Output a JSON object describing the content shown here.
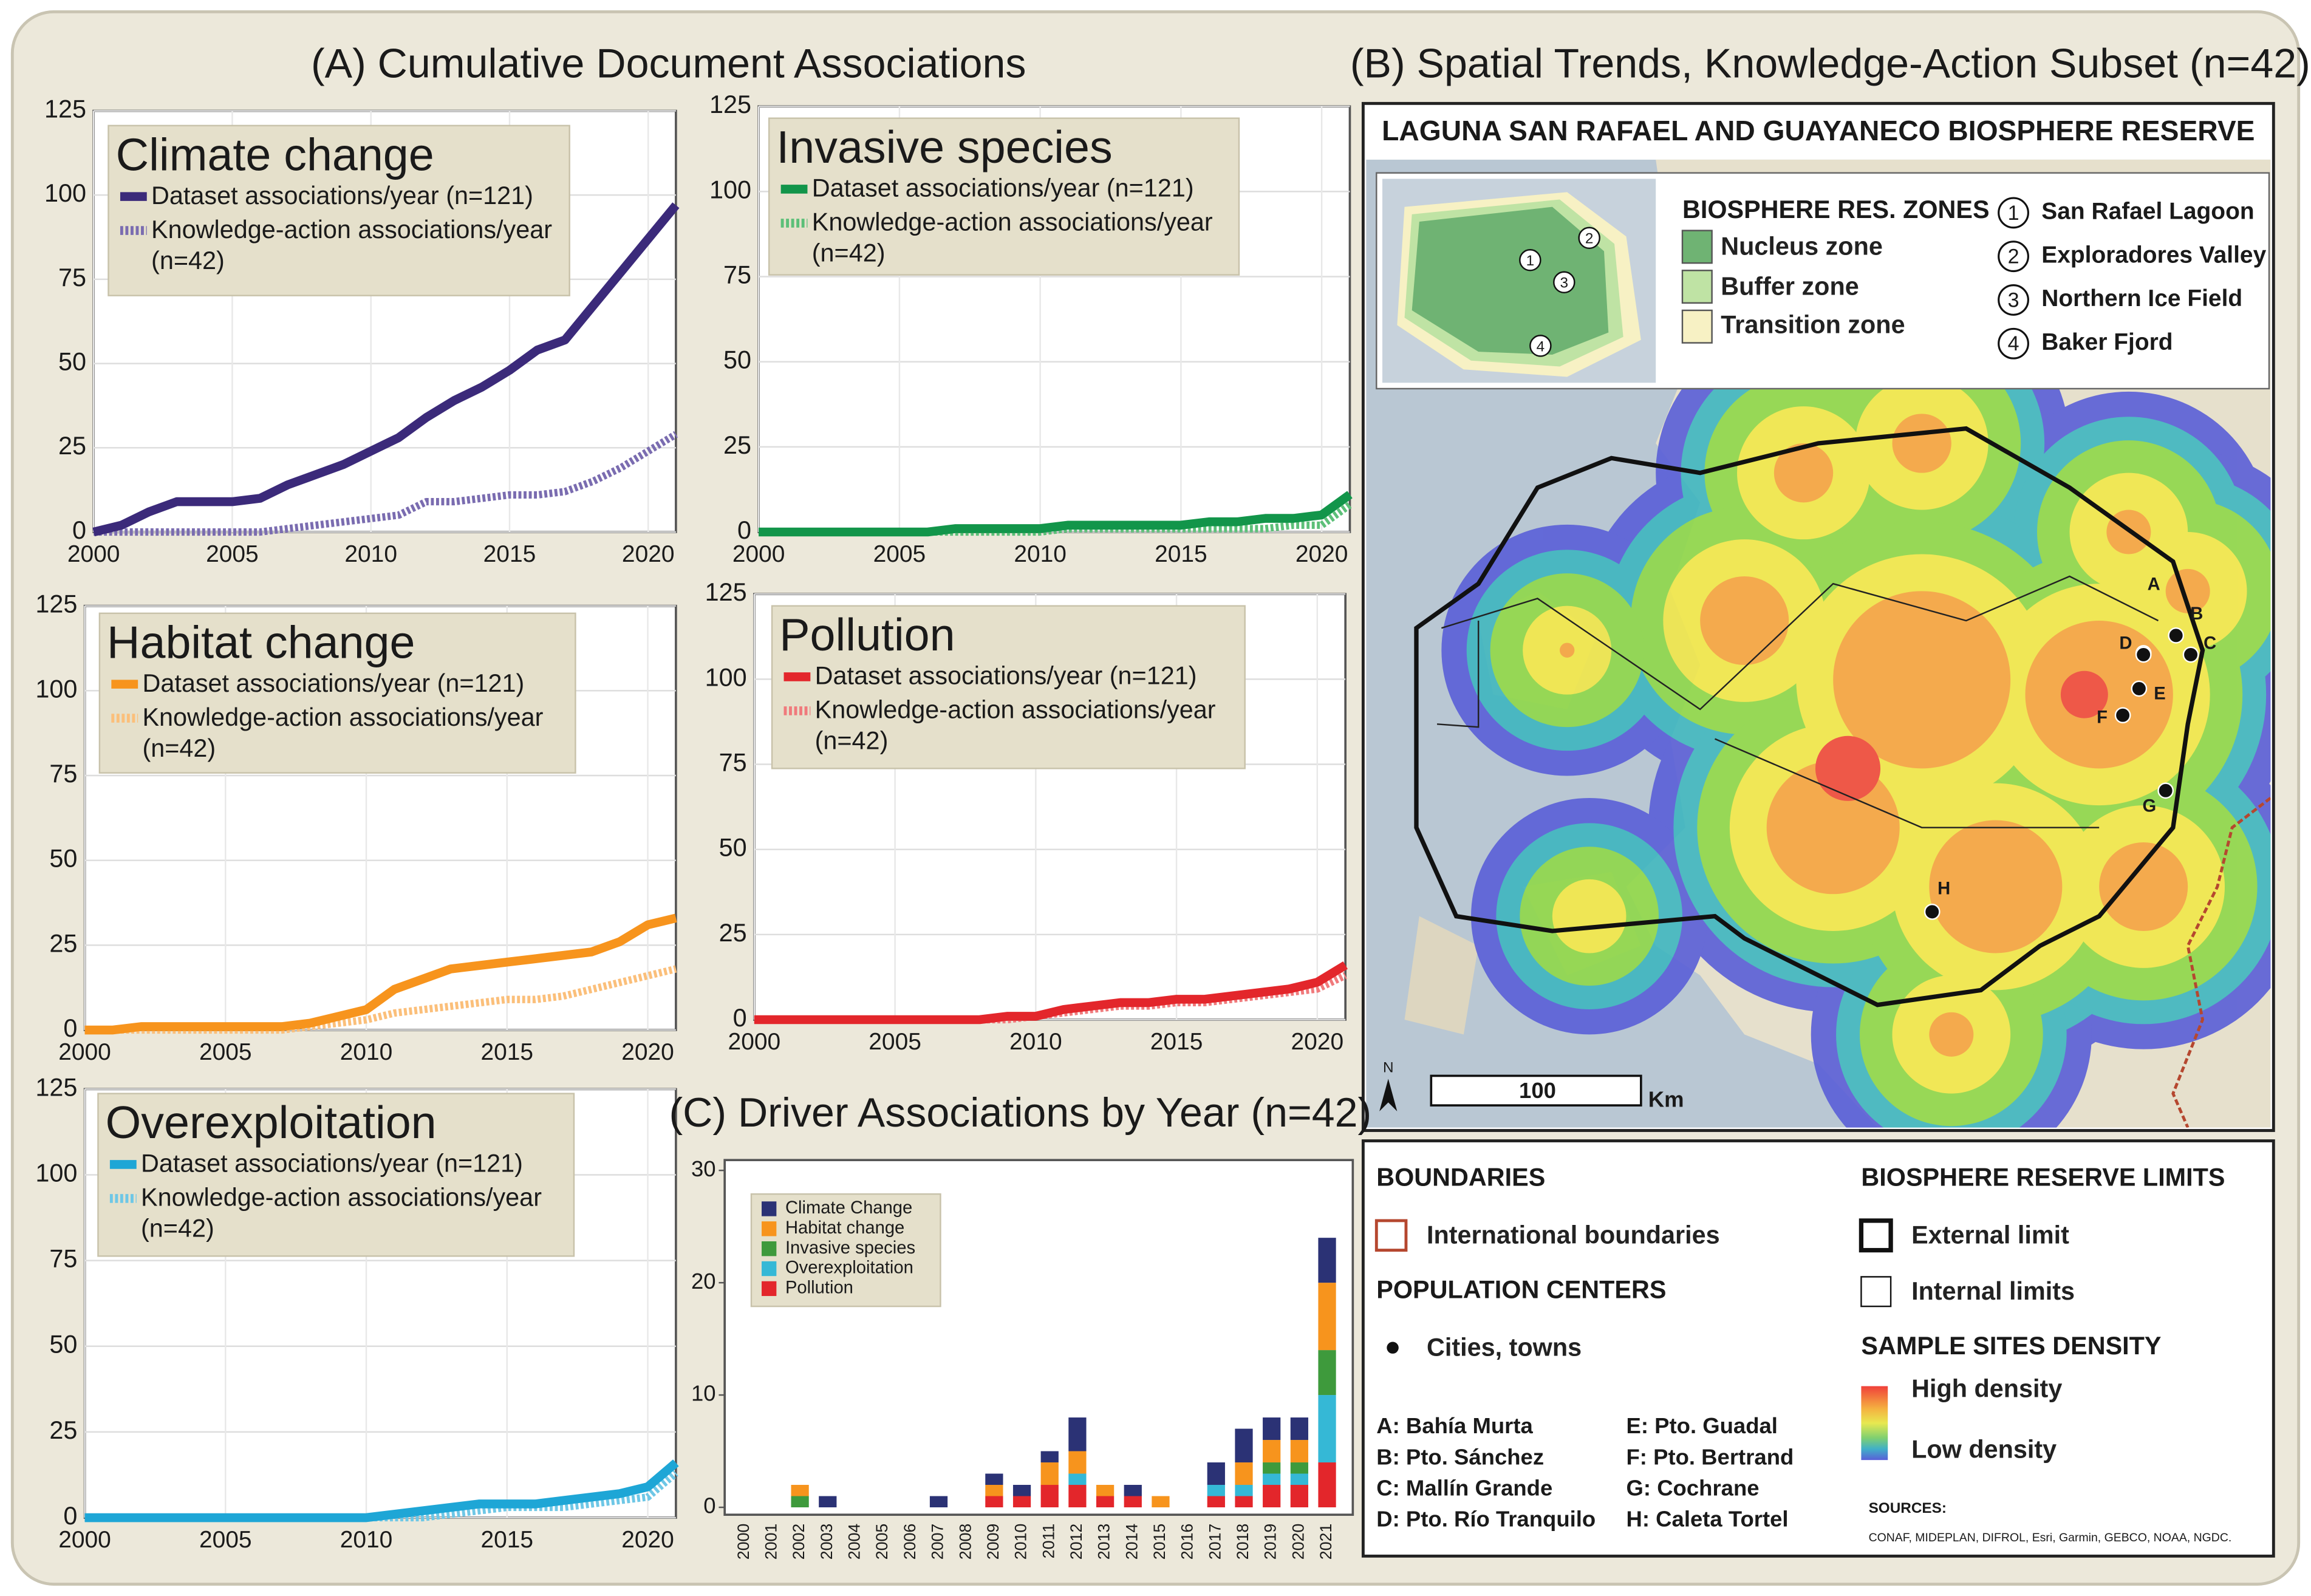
{
  "panel_a_title": "(A) Cumulative Document Associations",
  "chart_data": [
    {
      "type": "line",
      "title": "Climate change",
      "x": [
        2000,
        2001,
        2002,
        2003,
        2004,
        2005,
        2006,
        2007,
        2008,
        2009,
        2010,
        2011,
        2012,
        2013,
        2014,
        2015,
        2016,
        2017,
        2018,
        2019,
        2020,
        2021
      ],
      "xlim": [
        2000,
        2021
      ],
      "xticks": [
        2000,
        2005,
        2010,
        2015,
        2020
      ],
      "ylim": [
        0,
        125
      ],
      "yticks": [
        0,
        25,
        50,
        75,
        100,
        125
      ],
      "grid": true,
      "series": [
        {
          "name": "Dataset associations/year (n=121)",
          "color": "#3b2a7a",
          "line_style": "solid",
          "values": [
            0,
            2,
            6,
            9,
            9,
            9,
            10,
            14,
            17,
            20,
            24,
            28,
            34,
            39,
            43,
            48,
            54,
            57,
            67,
            77,
            87,
            97
          ]
        },
        {
          "name": "Knowledge-action associations/year (n=42)",
          "color": "#7a6cb0",
          "line_style": "dashed",
          "values": [
            0,
            0,
            0,
            0,
            0,
            0,
            0,
            1,
            2,
            3,
            4,
            5,
            9,
            9,
            10,
            11,
            11,
            12,
            15,
            19,
            24,
            29
          ]
        }
      ]
    },
    {
      "type": "line",
      "title": "Invasive species",
      "x": [
        2000,
        2001,
        2002,
        2003,
        2004,
        2005,
        2006,
        2007,
        2008,
        2009,
        2010,
        2011,
        2012,
        2013,
        2014,
        2015,
        2016,
        2017,
        2018,
        2019,
        2020,
        2021
      ],
      "xlim": [
        2000,
        2021
      ],
      "xticks": [
        2000,
        2005,
        2010,
        2015,
        2020
      ],
      "ylim": [
        0,
        125
      ],
      "yticks": [
        0,
        25,
        50,
        75,
        100,
        125
      ],
      "grid": true,
      "series": [
        {
          "name": "Dataset associations/year (n=121)",
          "color": "#12954a",
          "line_style": "solid",
          "values": [
            0,
            0,
            0,
            0,
            0,
            0,
            0,
            1,
            1,
            1,
            1,
            2,
            2,
            2,
            2,
            2,
            3,
            3,
            4,
            4,
            5,
            11
          ]
        },
        {
          "name": "Knowledge-action associations/year (n=42)",
          "color": "#5cbf78",
          "line_style": "dashed",
          "values": [
            0,
            0,
            0,
            0,
            0,
            0,
            0,
            0,
            0,
            0,
            0,
            1,
            1,
            1,
            1,
            1,
            1,
            1,
            1,
            2,
            2,
            8
          ]
        }
      ]
    },
    {
      "type": "line",
      "title": "Habitat change",
      "x": [
        2000,
        2001,
        2002,
        2003,
        2004,
        2005,
        2006,
        2007,
        2008,
        2009,
        2010,
        2011,
        2012,
        2013,
        2014,
        2015,
        2016,
        2017,
        2018,
        2019,
        2020,
        2021
      ],
      "xlim": [
        2000,
        2021
      ],
      "xticks": [
        2000,
        2005,
        2010,
        2015,
        2020
      ],
      "ylim": [
        0,
        125
      ],
      "yticks": [
        0,
        25,
        50,
        75,
        100,
        125
      ],
      "grid": true,
      "series": [
        {
          "name": "Dataset associations/year (n=121)",
          "color": "#f7941d",
          "line_style": "solid",
          "values": [
            0,
            0,
            1,
            1,
            1,
            1,
            1,
            1,
            2,
            4,
            6,
            12,
            15,
            18,
            19,
            20,
            21,
            22,
            23,
            26,
            31,
            33
          ]
        },
        {
          "name": "Knowledge-action associations/year (n=42)",
          "color": "#fbbf7a",
          "line_style": "dashed",
          "values": [
            0,
            0,
            0,
            0,
            0,
            0,
            0,
            0,
            1,
            2,
            3,
            5,
            6,
            7,
            8,
            9,
            9,
            10,
            12,
            14,
            16,
            18
          ]
        }
      ]
    },
    {
      "type": "line",
      "title": "Pollution",
      "x": [
        2000,
        2001,
        2002,
        2003,
        2004,
        2005,
        2006,
        2007,
        2008,
        2009,
        2010,
        2011,
        2012,
        2013,
        2014,
        2015,
        2016,
        2017,
        2018,
        2019,
        2020,
        2021
      ],
      "xlim": [
        2000,
        2021
      ],
      "xticks": [
        2000,
        2005,
        2010,
        2015,
        2020
      ],
      "ylim": [
        0,
        125
      ],
      "yticks": [
        0,
        25,
        50,
        75,
        100,
        125
      ],
      "grid": true,
      "series": [
        {
          "name": "Dataset associations/year (n=121)",
          "color": "#e3262b",
          "line_style": "solid",
          "values": [
            0,
            0,
            0,
            0,
            0,
            0,
            0,
            0,
            0,
            1,
            1,
            3,
            4,
            5,
            5,
            6,
            6,
            7,
            8,
            9,
            11,
            16
          ]
        },
        {
          "name": "Knowledge-action associations/year (n=42)",
          "color": "#f07a7c",
          "line_style": "dashed",
          "values": [
            0,
            0,
            0,
            0,
            0,
            0,
            0,
            0,
            0,
            0,
            1,
            2,
            3,
            4,
            4,
            5,
            5,
            6,
            7,
            8,
            9,
            13
          ]
        }
      ]
    },
    {
      "type": "line",
      "title": "Overexploitation",
      "x": [
        2000,
        2001,
        2002,
        2003,
        2004,
        2005,
        2006,
        2007,
        2008,
        2009,
        2010,
        2011,
        2012,
        2013,
        2014,
        2015,
        2016,
        2017,
        2018,
        2019,
        2020,
        2021
      ],
      "xlim": [
        2000,
        2021
      ],
      "xticks": [
        2000,
        2005,
        2010,
        2015,
        2020
      ],
      "ylim": [
        0,
        125
      ],
      "yticks": [
        0,
        25,
        50,
        75,
        100,
        125
      ],
      "grid": true,
      "series": [
        {
          "name": "Dataset associations/year (n=121)",
          "color": "#1ea6d6",
          "line_style": "solid",
          "values": [
            0,
            0,
            0,
            0,
            0,
            0,
            0,
            0,
            0,
            0,
            0,
            1,
            2,
            3,
            4,
            4,
            4,
            5,
            6,
            7,
            9,
            16
          ]
        },
        {
          "name": "Knowledge-action associations/year (n=42)",
          "color": "#6ec7e6",
          "line_style": "dashed",
          "values": [
            0,
            0,
            0,
            0,
            0,
            0,
            0,
            0,
            0,
            0,
            0,
            0,
            0,
            1,
            2,
            3,
            3,
            3,
            4,
            5,
            6,
            13
          ]
        }
      ]
    },
    {
      "type": "bar",
      "stacked": true,
      "title": "(C) Driver Associations by Year (n=42)",
      "categories": [
        "2000",
        "2001",
        "2002",
        "2003",
        "2004",
        "2005",
        "2006",
        "2007",
        "2008",
        "2009",
        "2010",
        "2011",
        "2012",
        "2013",
        "2014",
        "2015",
        "2016",
        "2017",
        "2018",
        "2019",
        "2020",
        "2021"
      ],
      "ylim": [
        0,
        30
      ],
      "yticks": [
        0,
        10,
        20,
        30
      ],
      "series": [
        {
          "name": "Climate Change",
          "color": "#2b3275",
          "values": [
            0,
            0,
            0,
            1,
            0,
            0,
            0,
            1,
            0,
            1,
            1,
            1,
            3,
            0,
            1,
            0,
            0,
            2,
            3,
            2,
            2,
            4
          ]
        },
        {
          "name": "Habitat change",
          "color": "#f7941d",
          "values": [
            0,
            0,
            1,
            0,
            0,
            0,
            0,
            0,
            0,
            1,
            0,
            2,
            2,
            1,
            0,
            1,
            0,
            0,
            2,
            2,
            2,
            6
          ]
        },
        {
          "name": "Invasive species",
          "color": "#3e9a3c",
          "values": [
            0,
            0,
            1,
            0,
            0,
            0,
            0,
            0,
            0,
            0,
            0,
            0,
            0,
            0,
            0,
            0,
            0,
            0,
            0,
            1,
            1,
            4
          ]
        },
        {
          "name": "Overexploitation",
          "color": "#35b8d6",
          "values": [
            0,
            0,
            0,
            0,
            0,
            0,
            0,
            0,
            0,
            0,
            0,
            0,
            1,
            0,
            0,
            0,
            0,
            1,
            1,
            1,
            1,
            6
          ]
        },
        {
          "name": "Pollution",
          "color": "#e3262b",
          "values": [
            0,
            0,
            0,
            0,
            0,
            0,
            0,
            0,
            0,
            1,
            1,
            2,
            2,
            1,
            1,
            0,
            0,
            1,
            1,
            2,
            2,
            4
          ]
        }
      ]
    }
  ],
  "map": {
    "panel_title": "(B) Spatial Trends, Knowledge-Action Subset (n=42)",
    "title": "LAGUNA SAN RAFAEL AND GUAYANECO BIOSPHERE RESERVE",
    "zones_title": "BIOSPHERE RES. ZONES",
    "zones": [
      "Nucleus zone",
      "Buffer zone",
      "Transition zone"
    ],
    "places": [
      {
        "number": 1,
        "name": "San Rafael Lagoon"
      },
      {
        "number": 2,
        "name": "Exploradores Valley"
      },
      {
        "number": 3,
        "name": "Northern Ice Field"
      },
      {
        "number": 4,
        "name": "Baker Fjord"
      }
    ],
    "site_labels": [
      "A",
      "B",
      "C",
      "D",
      "E",
      "F",
      "G",
      "H"
    ],
    "north": "N",
    "scale": "100",
    "scale_unit": "Km",
    "legend": {
      "boundaries_title": "BOUNDARIES",
      "international": "International boundaries",
      "population_title": "POPULATION CENTERS",
      "cities": "Cities, towns",
      "towns": [
        "A: Bahía Murta",
        "B: Pto. Sánchez",
        "C: Mallín Grande",
        "D: Pto. Río Tranquilo",
        "E: Pto. Guadal",
        "F: Pto. Bertrand",
        "G: Cochrane",
        "H: Caleta Tortel"
      ],
      "limits_title": "BIOSPHERE RESERVE LIMITS",
      "external": "External limit",
      "internal": "Internal limits",
      "density_title": "SAMPLE SITES DENSITY",
      "high": "High density",
      "low": "Low density",
      "sources_title": "SOURCES:",
      "sources": "CONAF, MIDEPLAN, DIFROL, Esri, Garmin, GEBCO, NOAA, NGDC."
    }
  }
}
